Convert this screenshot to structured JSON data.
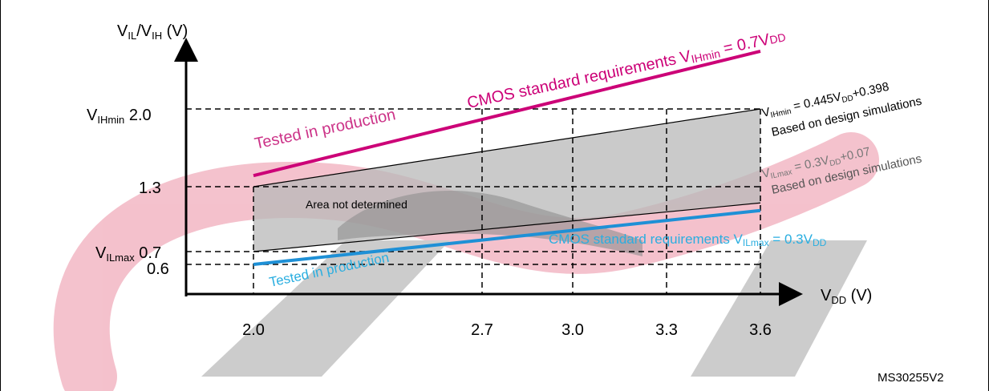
{
  "chart_data": {
    "type": "line",
    "y_axis_label": {
      "v": "V",
      "sub1": "IL",
      "sep": "/V",
      "sub2": "IH",
      "unit": " (V)"
    },
    "x_axis_label": {
      "v": "V",
      "sub": "DD",
      "unit": " (V)"
    },
    "x_ticks": [
      "2.0",
      "2.7",
      "3.0",
      "3.3",
      "3.6"
    ],
    "x_tick_values": [
      2.0,
      2.7,
      3.0,
      3.3,
      3.6
    ],
    "y_ticks": [
      {
        "value": 2.0,
        "prefix": "V",
        "sub": "IHmin",
        "text": " 2.0"
      },
      {
        "value": 1.3,
        "prefix": "",
        "sub": "",
        "text": "1.3"
      },
      {
        "value": 0.7,
        "prefix": "V",
        "sub": "ILmax",
        "text": " 0.7"
      },
      {
        "value": 0.6,
        "prefix": "",
        "sub": "",
        "text": "0.6"
      }
    ],
    "xlim": [
      2.0,
      3.6
    ],
    "series": [
      {
        "name": "VIHmin = 0.445VDD+0.398 (design simulations)",
        "color": "#000000",
        "x": [
          2.0,
          3.6
        ],
        "y": [
          1.3,
          2.0
        ]
      },
      {
        "name": "VILmax = 0.3VDD+0.07 (design simulations)",
        "color": "#000000",
        "x": [
          2.0,
          3.6
        ],
        "y": [
          0.7,
          1.15
        ]
      },
      {
        "name": "CMOS standard requirements VIHmin = 0.7VDD",
        "color": "#cc0077",
        "x": [
          2.0,
          3.6
        ],
        "y": [
          1.4,
          2.52
        ]
      },
      {
        "name": "CMOS standard requirements VILmax = 0.3VDD",
        "color": "#1e90d6",
        "x": [
          2.0,
          3.6
        ],
        "y": [
          0.6,
          1.08
        ]
      }
    ],
    "annotations": {
      "cmos_vih": {
        "text": "CMOS standard requirements V",
        "sub": "IHmin",
        "tail": " = 0.7V",
        "tail_sub": "DD",
        "color": "#cc0077"
      },
      "tested_top": {
        "text": "Tested in production",
        "color": "#cc3388"
      },
      "vih_formula": {
        "v": "V",
        "sub": "IHmin",
        "mid": " = 0.445V",
        "sub2": "DD",
        "tail": "+0.398"
      },
      "vih_note": "Based on design simulations",
      "vil_formula": {
        "v": "V",
        "sub": "ILmax",
        "mid": " = 0.3V",
        "sub2": "DD",
        "tail": "+0.07"
      },
      "vil_note": "Based on design simulations",
      "area_label": "Area not determined",
      "cmos_vil": {
        "text": "CMOS standard  requirements V",
        "sub": "ILmax",
        "tail": " = 0.3V",
        "tail_sub": "DD",
        "color": "#2aaee0"
      },
      "tested_bottom": {
        "text": "Tested in production",
        "color": "#2aaee0"
      }
    },
    "figure_id": "MS30255V2",
    "grid": "dashed"
  }
}
